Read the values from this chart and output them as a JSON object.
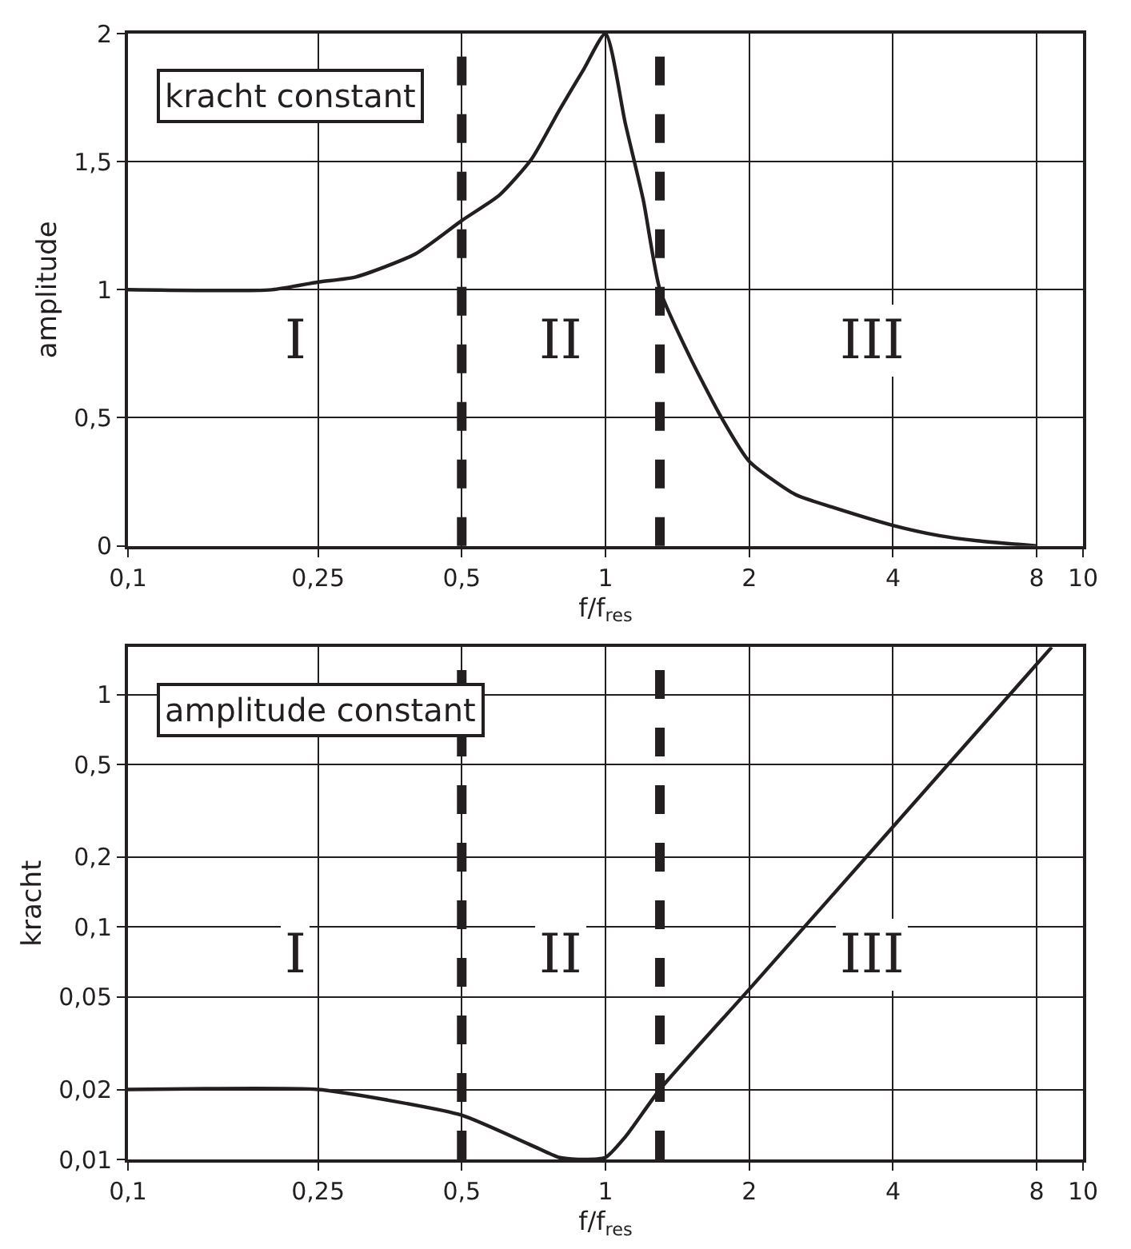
{
  "chart_data": [
    {
      "type": "line",
      "xlabel": "f/f$_{res}$",
      "ylabel": "amplitude",
      "log": "x",
      "grid": true,
      "marker": "none",
      "line_style": "solid",
      "xlim": [
        0.1,
        10
      ],
      "xticks": [
        {
          "value": 0.1,
          "label": "0,1"
        },
        {
          "value": 0.25,
          "label": "0,25"
        },
        {
          "value": 0.5,
          "label": "0,5"
        },
        1,
        2,
        4,
        8,
        10
      ],
      "ylim": [
        0,
        2
      ],
      "yticks": [
        0,
        {
          "value": 0.5,
          "label": "0,5"
        },
        1,
        {
          "value": 1.5,
          "label": "1,5"
        },
        2
      ],
      "series": [
        {
          "color": "#231f20",
          "x": [
            0.1,
            0.2,
            0.25,
            0.3,
            0.4,
            0.5,
            0.6,
            0.7,
            0.8,
            0.9,
            1.0,
            1.1,
            1.2,
            1.3,
            1.5,
            1.75,
            2,
            2.5,
            3,
            4,
            5,
            6,
            8
          ],
          "values": [
            1.0,
            1.0,
            1.03,
            1.05,
            1.14,
            1.27,
            1.37,
            1.51,
            1.7,
            1.86,
            2.0,
            1.65,
            1.35,
            1.0,
            0.74,
            0.5,
            0.33,
            0.2,
            0.15,
            0.08,
            0.04,
            0.02,
            0.0
          ]
        }
      ],
      "ref_lines": [
        {
          "axis": "x",
          "value": 0.5,
          "color": "#231f20",
          "line_style": "dashed"
        },
        {
          "axis": "x",
          "value": 1.3,
          "color": "#231f20",
          "line_style": "dashed"
        }
      ],
      "annotations": [
        "kracht constant",
        "I",
        "II",
        "III"
      ]
    },
    {
      "type": "line",
      "xlabel": "f/f$_{res}$",
      "ylabel": "kracht",
      "log": "xy",
      "grid": true,
      "marker": "none",
      "line_style": "solid",
      "xlim": [
        0.1,
        10
      ],
      "xticks": [
        {
          "value": 0.1,
          "label": "0,1"
        },
        {
          "value": 0.25,
          "label": "0,25"
        },
        {
          "value": 0.5,
          "label": "0,5"
        },
        1,
        2,
        4,
        8,
        10
      ],
      "ylim": [
        0.01,
        1.6
      ],
      "yticks": [
        {
          "value": 0.01,
          "label": "0,01"
        },
        {
          "value": 0.02,
          "label": "0,02"
        },
        {
          "value": 0.05,
          "label": "0,05"
        },
        {
          "value": 0.1,
          "label": "0,1"
        },
        {
          "value": 0.2,
          "label": "0,2"
        },
        {
          "value": 0.5,
          "label": "0,5"
        },
        1
      ],
      "series": [
        {
          "color": "#231f20",
          "x": [
            0.1,
            0.25,
            0.35,
            0.5,
            0.7,
            0.8,
            0.9,
            1.0,
            1.1,
            1.3,
            2,
            4,
            8.6
          ],
          "values": [
            0.02,
            0.02,
            0.018,
            0.0155,
            0.0115,
            0.0102,
            0.01,
            0.0102,
            0.0125,
            0.02,
            0.054,
            0.27,
            1.6
          ]
        }
      ],
      "ref_lines": [
        {
          "axis": "x",
          "value": 0.5,
          "color": "#231f20",
          "line_style": "dashed"
        },
        {
          "axis": "x",
          "value": 1.3,
          "color": "#231f20",
          "line_style": "dashed"
        }
      ],
      "annotations": [
        "amplitude constant",
        "I",
        "II",
        "III"
      ]
    }
  ]
}
